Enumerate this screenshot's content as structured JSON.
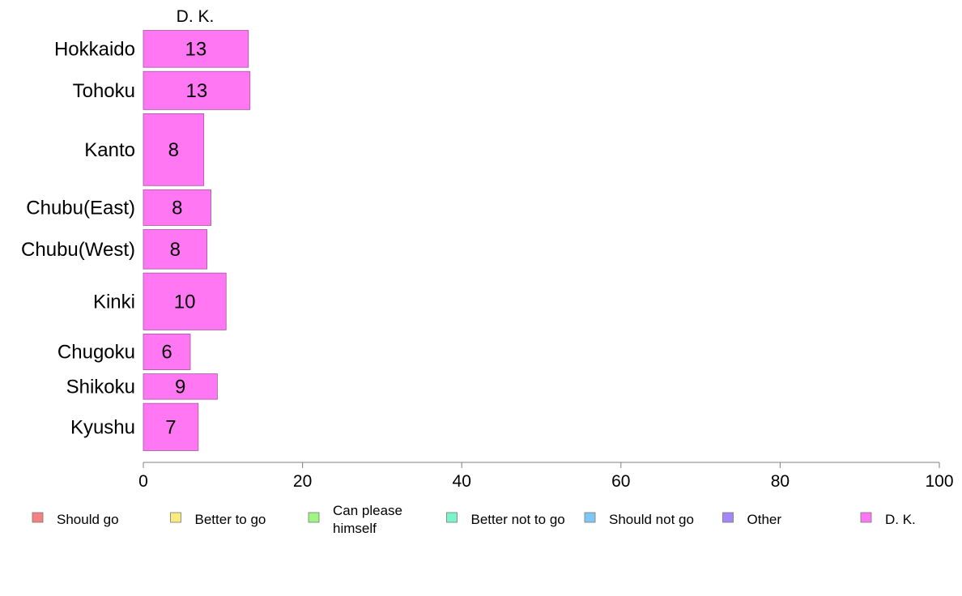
{
  "chart_data": {
    "type": "bar",
    "orientation": "horizontal",
    "series_label": "D. K.",
    "categories": [
      "Hokkaido",
      "Tohoku",
      "Kanto",
      "Chubu(East)",
      "Chubu(West)",
      "Kinki",
      "Chugoku",
      "Shikoku",
      "Kyushu"
    ],
    "values": [
      13.2,
      13.4,
      7.6,
      8.5,
      8.0,
      10.4,
      5.9,
      9.3,
      6.9
    ],
    "value_labels": [
      "13",
      "13",
      "8",
      "8",
      "8",
      "10",
      "6",
      "9",
      "7"
    ],
    "category_weights": [
      0.68,
      0.7,
      1.26,
      0.66,
      0.72,
      1.01,
      0.66,
      0.49,
      0.85
    ],
    "xlim": [
      0,
      100
    ],
    "xticks": [
      "0",
      "20",
      "40",
      "60",
      "80",
      "100"
    ],
    "grid": false,
    "bar_color": "#ff77f3",
    "legend_position": "bottom",
    "legend": [
      {
        "label": "Should go",
        "color": "#f58282"
      },
      {
        "label": "Better to go",
        "color": "#f8ec7e"
      },
      {
        "label": "Can please himself",
        "color": "#9ff783"
      },
      {
        "label": "Better not to go",
        "color": "#7cf3c9"
      },
      {
        "label": "Should not go",
        "color": "#7fc8f6"
      },
      {
        "label": "Other",
        "color": "#a386f7"
      },
      {
        "label": "D. K.",
        "color": "#ff77f3"
      }
    ]
  }
}
